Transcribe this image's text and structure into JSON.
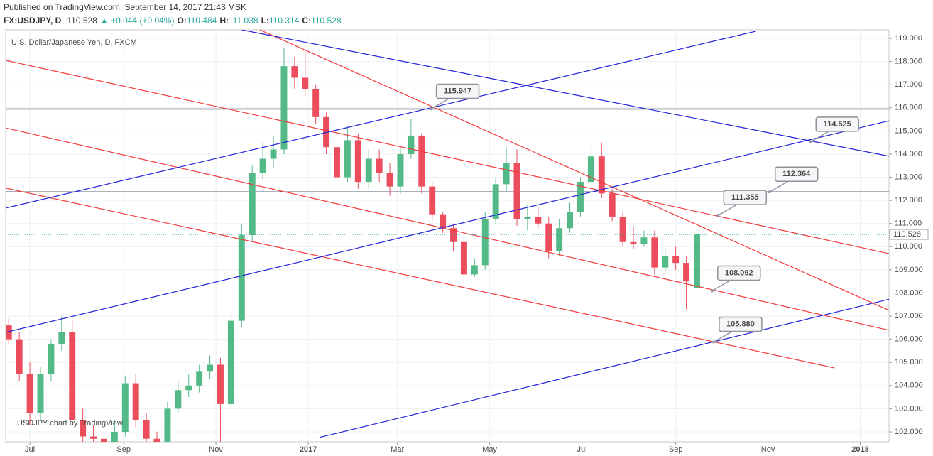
{
  "header": {
    "published": "Published on TradingView.com, September 14, 2017 21:43 MSK",
    "symbol": "FX:USDJPY, D",
    "last": "110.528",
    "change": "▲ +0.044 (+0.04%)",
    "o_label": "O:",
    "o": "110.484",
    "h_label": "H:",
    "h": "111.038",
    "l_label": "L:",
    "l": "110.314",
    "c_label": "C:",
    "c": "110.528"
  },
  "chart_data": {
    "type": "candlestick",
    "legend": "U.S. Dollar/Japanese Yen, D, FXCM",
    "watermark": "USDJPY chart by TradingView",
    "up_color": "#53b987",
    "down_color": "#eb4d5c",
    "xlim": [
      -16,
      568
    ],
    "ylim": [
      101.57,
      119.37
    ],
    "xticks": [
      {
        "value": 0,
        "label": "Jul"
      },
      {
        "value": 62,
        "label": "Sep"
      },
      {
        "value": 123,
        "label": "Nov"
      },
      {
        "value": 184,
        "label": "2017"
      },
      {
        "value": 243,
        "label": "Mar"
      },
      {
        "value": 304,
        "label": "May"
      },
      {
        "value": 365,
        "label": "Jul"
      },
      {
        "value": 427,
        "label": "Sep"
      },
      {
        "value": 488,
        "label": "Nov"
      },
      {
        "value": 549,
        "label": "2018"
      }
    ],
    "yticks": [
      {
        "value": 102,
        "label": "102.000"
      },
      {
        "value": 103,
        "label": "103.000"
      },
      {
        "value": 104,
        "label": "104.000"
      },
      {
        "value": 105,
        "label": "105.000"
      },
      {
        "value": 106,
        "label": "106.000"
      },
      {
        "value": 107,
        "label": "107.000"
      },
      {
        "value": 108,
        "label": "108.000"
      },
      {
        "value": 109,
        "label": "109.000"
      },
      {
        "value": 110,
        "label": "110.000"
      },
      {
        "value": 111,
        "label": "111.000"
      },
      {
        "value": 112,
        "label": "112.000"
      },
      {
        "value": 113,
        "label": "113.000"
      },
      {
        "value": 114,
        "label": "114.000"
      },
      {
        "value": 115,
        "label": "115.000"
      },
      {
        "value": 116,
        "label": "116.000"
      },
      {
        "value": 117,
        "label": "117.000"
      },
      {
        "value": 118,
        "label": "118.000"
      },
      {
        "value": 119,
        "label": "119.000"
      }
    ],
    "x": [
      -14,
      -7,
      0,
      7,
      14,
      21,
      28,
      35,
      42,
      49,
      56,
      63,
      70,
      77,
      84,
      91,
      98,
      105,
      112,
      119,
      126,
      133,
      140,
      147,
      154,
      161,
      168,
      175,
      182,
      189,
      196,
      203,
      210,
      217,
      224,
      231,
      238,
      245,
      252,
      259,
      266,
      273,
      280,
      287,
      294,
      301,
      308,
      315,
      322,
      329,
      336,
      343,
      350,
      357,
      364,
      371,
      378,
      385,
      392,
      399,
      406,
      413,
      420,
      427,
      434,
      441
    ],
    "open": [
      106.6,
      106,
      104.5,
      102.8,
      104.5,
      105.8,
      106.3,
      102.5,
      101.8,
      101.7,
      101.5,
      102,
      104.1,
      102.5,
      101.7,
      101.5,
      103,
      103.8,
      104,
      104.6,
      104.9,
      103.2,
      106.8,
      110.5,
      113.2,
      113.8,
      114.2,
      117.8,
      117.3,
      116.8,
      115.6,
      114.3,
      113,
      114.6,
      112.8,
      113.8,
      113.2,
      112.6,
      114,
      114.8,
      112.6,
      111.4,
      110.8,
      110.2,
      108.8,
      109.2,
      111.2,
      112.7,
      113.6,
      111.2,
      111.3,
      111,
      109.8,
      110.8,
      111.5,
      112.8,
      113.9,
      112.3,
      111.3,
      110.2,
      110.1,
      110.4,
      109.1,
      109.6,
      109.3,
      108.2
    ],
    "high": [
      106.9,
      106.3,
      105,
      104.8,
      106,
      107,
      106.8,
      103,
      102.3,
      102.2,
      102.5,
      104.4,
      104.5,
      102.8,
      102,
      103.3,
      104.2,
      104.5,
      104.9,
      105.3,
      105.2,
      107.2,
      111,
      113.5,
      114.5,
      114.8,
      118.6,
      118.2,
      118.5,
      117,
      115.8,
      114.6,
      115.2,
      114.9,
      114.2,
      114.2,
      113.6,
      114.3,
      115.5,
      114.9,
      112.8,
      111.5,
      111,
      110.5,
      109.5,
      111.5,
      113,
      114.3,
      114.2,
      111.8,
      111.7,
      111.3,
      111.2,
      111.9,
      113,
      114.4,
      114.5,
      112.5,
      111.5,
      110.9,
      110.7,
      110.7,
      109.9,
      110,
      109.6,
      111.04
    ],
    "low": [
      105.8,
      104.2,
      102.3,
      102.5,
      104.2,
      105.5,
      102.3,
      101.5,
      101.2,
      101.3,
      101.2,
      101.8,
      102.2,
      101.4,
      101.2,
      101.4,
      102.8,
      103.5,
      103.7,
      104.3,
      101.2,
      103,
      106.5,
      110.2,
      112.9,
      113.4,
      114,
      116.8,
      116.5,
      115.3,
      114,
      112.6,
      112.8,
      112.5,
      112.5,
      112.8,
      112.2,
      112.3,
      113.8,
      112.3,
      111.1,
      110.6,
      109.8,
      108.2,
      108.7,
      109,
      111,
      112.4,
      110.9,
      110.7,
      110.8,
      109.5,
      109.6,
      110.6,
      111.3,
      112.6,
      112.1,
      111.1,
      110,
      109.9,
      110,
      108.8,
      108.8,
      109,
      107.3,
      108.1
    ],
    "close": [
      106,
      104.5,
      102.8,
      104.5,
      105.8,
      106.3,
      102.5,
      101.8,
      101.7,
      101.5,
      102,
      104.1,
      102.5,
      101.7,
      101.5,
      103,
      103.8,
      104,
      104.6,
      104.9,
      103.2,
      106.8,
      110.5,
      113.2,
      113.8,
      114.2,
      117.8,
      117.3,
      116.8,
      115.6,
      114.3,
      113,
      114.6,
      112.8,
      113.8,
      113.2,
      112.6,
      114,
      114.8,
      112.6,
      111.4,
      110.8,
      110.2,
      108.8,
      109.2,
      111.2,
      112.7,
      113.6,
      111.2,
      111.3,
      111,
      109.8,
      110.8,
      111.5,
      112.8,
      113.9,
      112.3,
      111.3,
      110.2,
      110.1,
      110.4,
      109.1,
      109.6,
      109.3,
      108.5,
      110.528
    ],
    "last_price": 110.528,
    "last_price_label": "110.528",
    "last_color": "#26a69a",
    "levels": [
      {
        "value": 115.947,
        "color": "#5a5f78"
      },
      {
        "value": 112.364,
        "color": "#5a5f78"
      }
    ],
    "trendlines": [
      {
        "color": "#f23b3b",
        "x": [
          -16,
          568
        ],
        "y": [
          118.05,
          109.7
        ]
      },
      {
        "color": "#f23b3b",
        "x": [
          -16,
          568
        ],
        "y": [
          115.13,
          106.39
        ]
      },
      {
        "color": "#f23b3b",
        "x": [
          -16,
          532
        ],
        "y": [
          112.53,
          104.76
        ]
      },
      {
        "color": "#f23b3b",
        "x": [
          152,
          568
        ],
        "y": [
          119.37,
          107.25
        ]
      },
      {
        "color": "#2323d8",
        "x": [
          -16,
          480
        ],
        "y": [
          111.67,
          119.31
        ]
      },
      {
        "color": "#2323d8",
        "x": [
          140,
          568
        ],
        "y": [
          119.37,
          113.91
        ]
      },
      {
        "color": "#2323d8",
        "x": [
          -16,
          568
        ],
        "y": [
          106.3,
          115.44
        ]
      },
      {
        "color": "#2323d8",
        "x": [
          191.5,
          568
        ],
        "y": [
          101.76,
          107.73
        ]
      }
    ],
    "callouts": [
      {
        "x": 265,
        "value": 115.947,
        "label": "115.947"
      },
      {
        "x": 516,
        "value": 114.525,
        "label": "114.525"
      },
      {
        "x": 489,
        "value": 112.364,
        "label": "112.364"
      },
      {
        "x": 455,
        "value": 111.355,
        "label": "111.355"
      },
      {
        "x": 451,
        "value": 108.092,
        "label": "108.092"
      },
      {
        "x": 452,
        "value": 105.88,
        "label": "105.880"
      }
    ]
  }
}
